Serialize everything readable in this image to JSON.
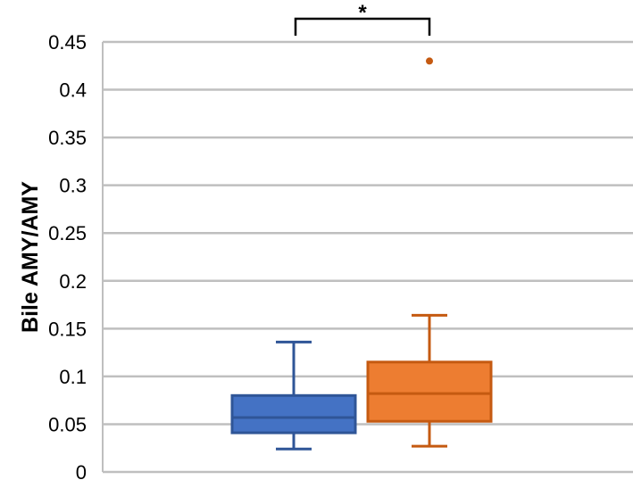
{
  "chart_data": {
    "type": "box",
    "ylabel": "Bile AMY/AMY",
    "xlabel": "",
    "ylim": [
      0,
      0.45
    ],
    "yticks": [
      "0",
      "0.05",
      "0.1",
      "0.15",
      "0.2",
      "0.25",
      "0.3",
      "0.35",
      "0.4",
      "0.45"
    ],
    "grid": true,
    "series": [
      {
        "color": "#4472C4",
        "edge": "#2F5597",
        "min": 0.024,
        "q1": 0.041,
        "median": 0.057,
        "q3": 0.08,
        "max": 0.136,
        "outliers": []
      },
      {
        "color": "#ED7D31",
        "edge": "#C55A11",
        "min": 0.027,
        "q1": 0.053,
        "median": 0.082,
        "q3": 0.115,
        "max": 0.164,
        "outliers": [
          0.43
        ]
      }
    ],
    "annotation": "*"
  }
}
